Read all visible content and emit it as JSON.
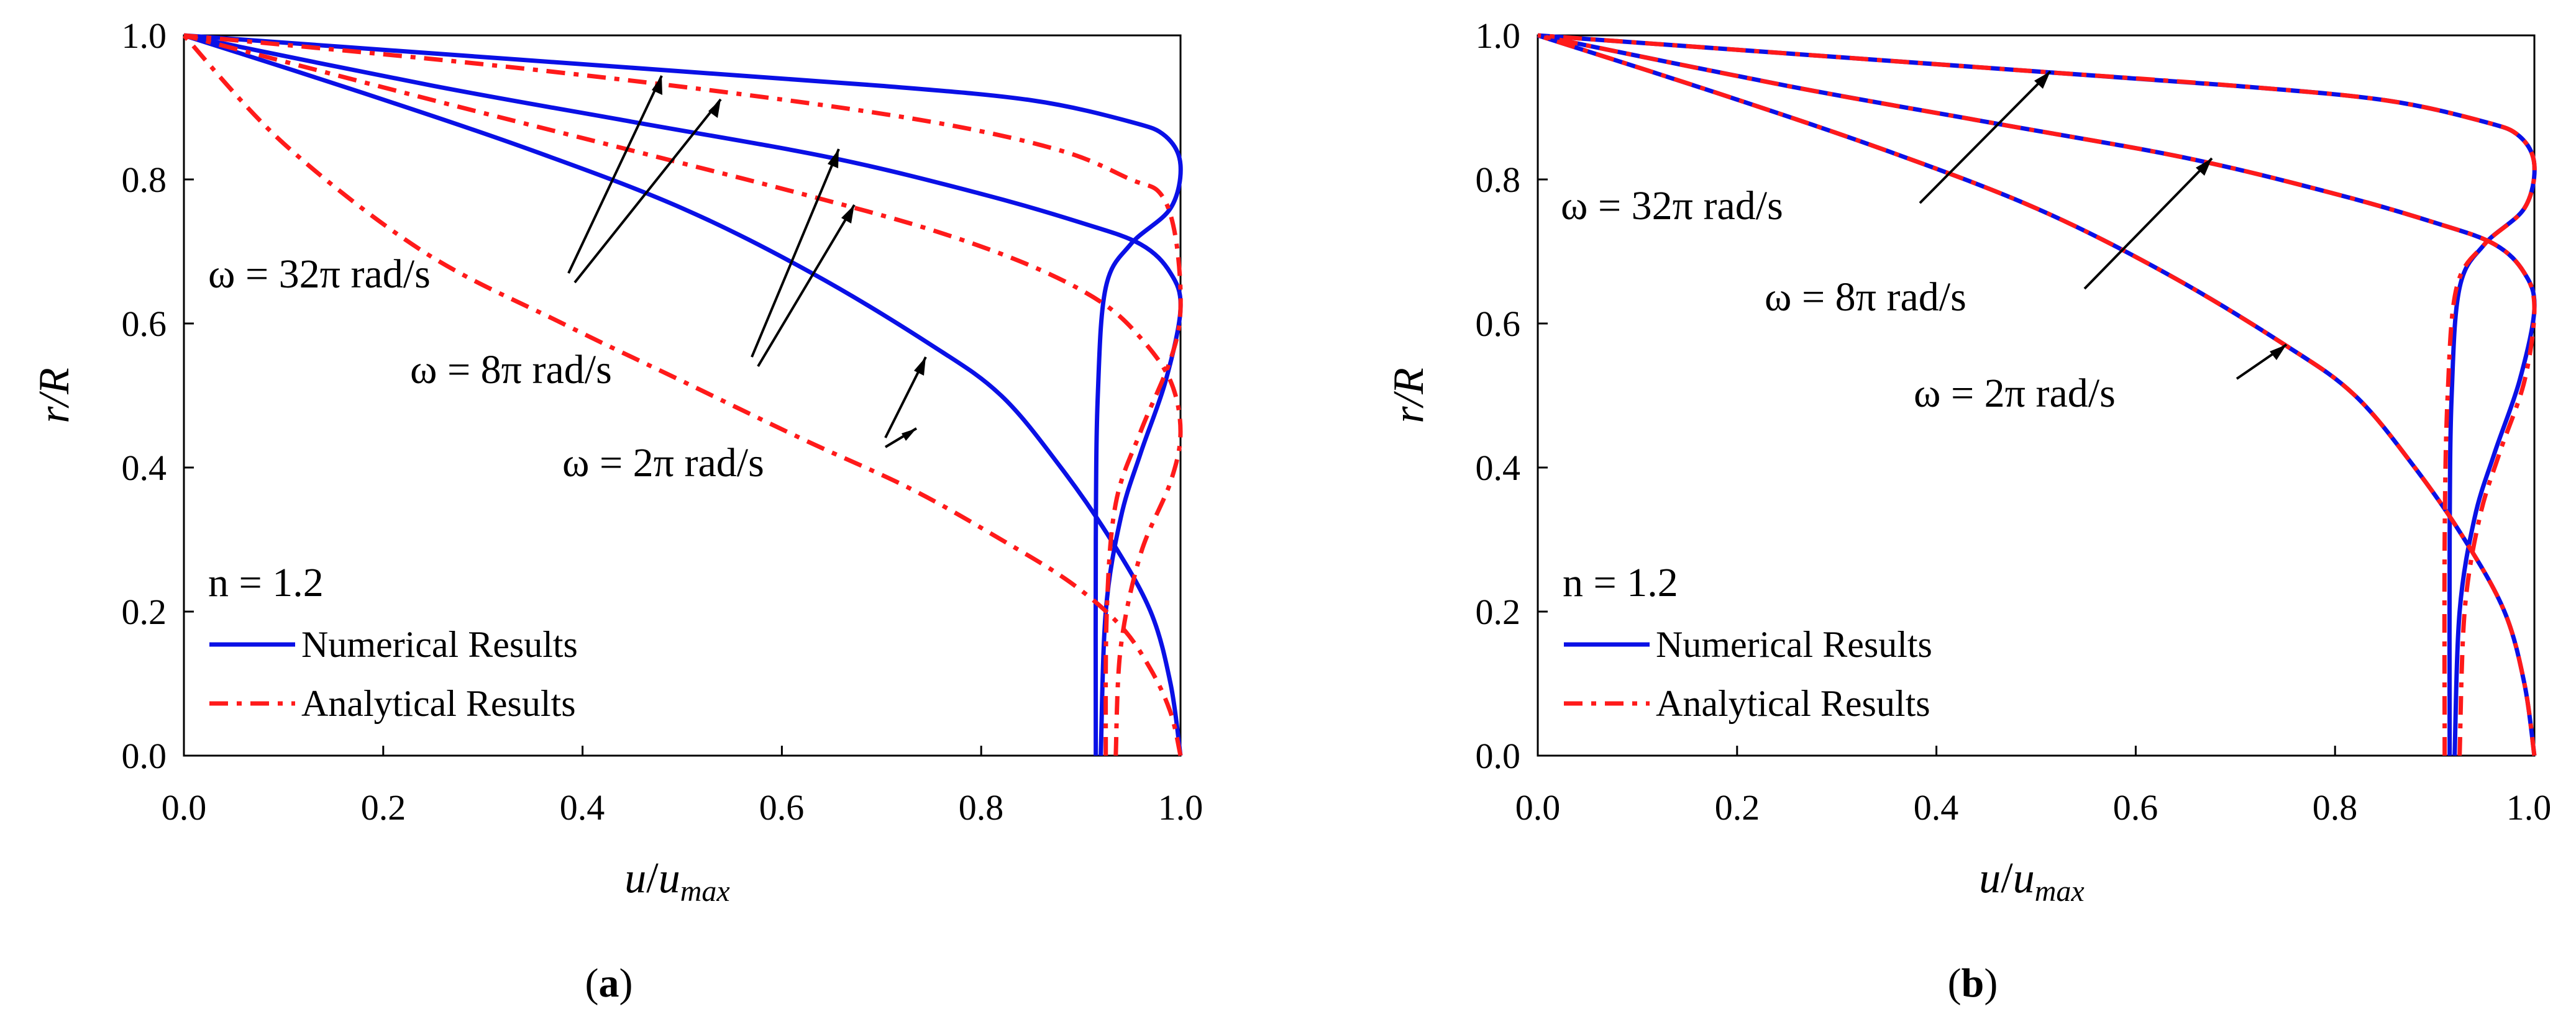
{
  "colors": {
    "numerical": "#0a10e6",
    "analytical": "#ff1a1a",
    "axis": "#000000"
  },
  "icons": {
    "numerical": "solid-line-icon",
    "analytical": "dash-dot-line-icon"
  },
  "chart_data": [
    {
      "type": "line",
      "panel_label": "(a)",
      "panel_letter": "a",
      "xlabel": "u/u_max",
      "xlabel_main": "u",
      "xlabel_slash": "/",
      "xlabel_u": "u",
      "xlabel_sub": "max",
      "ylabel": "r/R",
      "xlim": [
        0,
        1
      ],
      "ylim": [
        0,
        1
      ],
      "xticks": [
        "0.0",
        "0.2",
        "0.4",
        "0.6",
        "0.8",
        "1.0"
      ],
      "yticks": [
        "0.0",
        "0.2",
        "0.4",
        "0.6",
        "0.8",
        "1.0"
      ],
      "n_label": "n = 1.2",
      "legend": [
        "Numerical Results",
        "Analytical Results"
      ],
      "annotations": [
        "ω = 32π rad/s",
        "ω = 8π rad/s",
        "ω = 2π rad/s"
      ],
      "series": [
        {
          "name": "Numerical ω = 2π rad/s",
          "style": "solid",
          "x": [
            1.0,
            0.99,
            0.97,
            0.93,
            0.88,
            0.82,
            0.75,
            0.63,
            0.5,
            0.35,
            0.18,
            0.0
          ],
          "y": [
            0.0,
            0.1,
            0.2,
            0.3,
            0.4,
            0.5,
            0.57,
            0.67,
            0.76,
            0.84,
            0.92,
            1.0
          ]
        },
        {
          "name": "Numerical ω = 8π rad/s",
          "style": "solid",
          "x": [
            0.92,
            0.925,
            0.94,
            0.96,
            0.985,
            1.0,
            0.99,
            0.96,
            0.9,
            0.8,
            0.65,
            0.45,
            0.25,
            0.0
          ],
          "y": [
            0.0,
            0.2,
            0.33,
            0.42,
            0.52,
            0.62,
            0.67,
            0.71,
            0.74,
            0.78,
            0.83,
            0.88,
            0.93,
            1.0
          ]
        },
        {
          "name": "Numerical ω = 32π rad/s",
          "style": "solid",
          "x": [
            0.915,
            0.915,
            0.917,
            0.925,
            0.95,
            0.99,
            1.0,
            0.985,
            0.95,
            0.85,
            0.7,
            0.5,
            0.25,
            0.0
          ],
          "y": [
            0.0,
            0.3,
            0.5,
            0.65,
            0.71,
            0.76,
            0.82,
            0.86,
            0.88,
            0.91,
            0.93,
            0.95,
            0.975,
            1.0
          ]
        },
        {
          "name": "Analytical ω = 2π rad/s",
          "style": "dashdot",
          "x": [
            1.0,
            0.99,
            0.97,
            0.94,
            0.89,
            0.82,
            0.73,
            0.62,
            0.5,
            0.38,
            0.24,
            0.1,
            0.0
          ],
          "y": [
            0.0,
            0.06,
            0.12,
            0.18,
            0.24,
            0.3,
            0.37,
            0.44,
            0.52,
            0.6,
            0.7,
            0.85,
            1.0
          ]
        },
        {
          "name": "Analytical ω = 8π rad/s",
          "style": "dashdot",
          "x": [
            0.935,
            0.94,
            0.96,
            0.99,
            1.0,
            0.99,
            0.96,
            0.92,
            0.85,
            0.75,
            0.62,
            0.45,
            0.25,
            0.0
          ],
          "y": [
            0.0,
            0.15,
            0.28,
            0.38,
            0.45,
            0.52,
            0.58,
            0.63,
            0.68,
            0.73,
            0.78,
            0.84,
            0.91,
            1.0
          ]
        },
        {
          "name": "Analytical ω = 32π rad/s",
          "style": "dashdot",
          "x": [
            0.925,
            0.926,
            0.935,
            0.96,
            0.99,
            1.0,
            0.995,
            0.98,
            0.95,
            0.88,
            0.75,
            0.55,
            0.3,
            0.0
          ],
          "y": [
            0.0,
            0.2,
            0.35,
            0.45,
            0.55,
            0.62,
            0.72,
            0.78,
            0.8,
            0.84,
            0.88,
            0.92,
            0.96,
            1.0
          ]
        }
      ]
    },
    {
      "type": "line",
      "panel_label": "(b)",
      "panel_letter": "b",
      "xlabel": "u/u_max",
      "xlabel_main": "u",
      "xlabel_slash": "/",
      "xlabel_u": "u",
      "xlabel_sub": "max",
      "ylabel": "r/R",
      "xlim": [
        0,
        1
      ],
      "ylim": [
        0,
        1
      ],
      "xticks": [
        "0.0",
        "0.2",
        "0.4",
        "0.6",
        "0.8",
        "1.0"
      ],
      "yticks": [
        "0.0",
        "0.2",
        "0.4",
        "0.6",
        "0.8",
        "1.0"
      ],
      "n_label": "n = 1.2",
      "legend": [
        "Numerical Results",
        "Analytical Results"
      ],
      "annotations": [
        "ω = 32π rad/s",
        "ω = 8π rad/s",
        "ω = 2π rad/s"
      ],
      "series": [
        {
          "name": "Numerical ω = 2π rad/s",
          "style": "solid",
          "x": [
            1.0,
            0.99,
            0.97,
            0.93,
            0.88,
            0.82,
            0.75,
            0.63,
            0.5,
            0.35,
            0.18,
            0.0
          ],
          "y": [
            0.0,
            0.1,
            0.2,
            0.3,
            0.4,
            0.5,
            0.57,
            0.67,
            0.76,
            0.84,
            0.92,
            1.0
          ]
        },
        {
          "name": "Numerical ω = 8π rad/s",
          "style": "solid",
          "x": [
            0.92,
            0.925,
            0.94,
            0.96,
            0.985,
            1.0,
            0.99,
            0.96,
            0.9,
            0.8,
            0.65,
            0.45,
            0.25,
            0.0
          ],
          "y": [
            0.0,
            0.2,
            0.33,
            0.42,
            0.52,
            0.62,
            0.67,
            0.71,
            0.74,
            0.78,
            0.83,
            0.88,
            0.93,
            1.0
          ]
        },
        {
          "name": "Numerical ω = 32π rad/s",
          "style": "solid",
          "x": [
            0.915,
            0.915,
            0.917,
            0.925,
            0.95,
            0.99,
            1.0,
            0.985,
            0.95,
            0.85,
            0.7,
            0.5,
            0.25,
            0.0
          ],
          "y": [
            0.0,
            0.3,
            0.5,
            0.65,
            0.71,
            0.76,
            0.82,
            0.86,
            0.88,
            0.91,
            0.93,
            0.95,
            0.975,
            1.0
          ]
        },
        {
          "name": "Analytical ω = 2π rad/s",
          "style": "dashdot",
          "x": [
            1.0,
            0.99,
            0.97,
            0.93,
            0.88,
            0.82,
            0.75,
            0.63,
            0.5,
            0.35,
            0.18,
            0.0
          ],
          "y": [
            0.0,
            0.1,
            0.2,
            0.3,
            0.4,
            0.5,
            0.57,
            0.67,
            0.76,
            0.84,
            0.92,
            1.0
          ]
        },
        {
          "name": "Analytical ω = 8π rad/s",
          "style": "dashdot",
          "x": [
            0.925,
            0.93,
            0.945,
            0.965,
            0.99,
            1.0,
            0.99,
            0.96,
            0.9,
            0.8,
            0.65,
            0.45,
            0.25,
            0.0
          ],
          "y": [
            0.0,
            0.2,
            0.33,
            0.42,
            0.52,
            0.62,
            0.67,
            0.71,
            0.74,
            0.78,
            0.83,
            0.88,
            0.93,
            1.0
          ]
        },
        {
          "name": "Analytical ω = 32π rad/s",
          "style": "dashdot",
          "x": [
            0.91,
            0.91,
            0.913,
            0.922,
            0.95,
            0.99,
            1.0,
            0.985,
            0.95,
            0.85,
            0.7,
            0.5,
            0.25,
            0.0
          ],
          "y": [
            0.0,
            0.3,
            0.5,
            0.65,
            0.71,
            0.76,
            0.82,
            0.86,
            0.88,
            0.91,
            0.93,
            0.95,
            0.975,
            1.0
          ]
        }
      ]
    }
  ]
}
